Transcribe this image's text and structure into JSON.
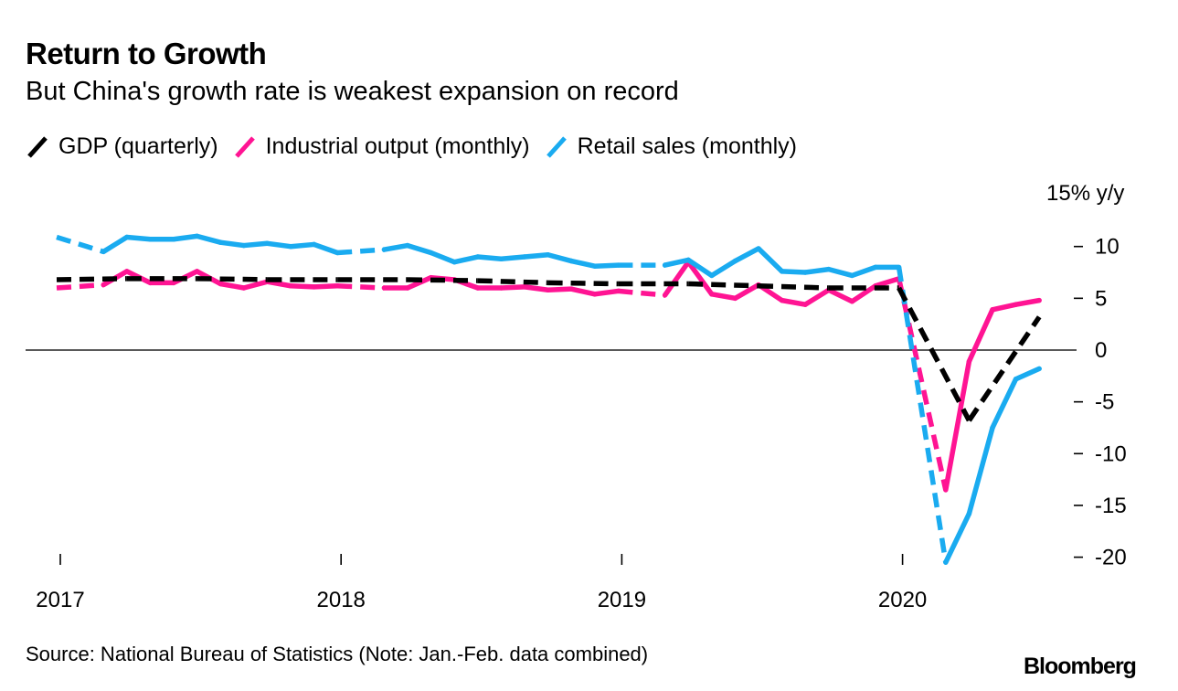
{
  "header": {
    "title": "Return to Growth",
    "subtitle": "But China's growth rate is weakest expansion on record"
  },
  "footer": {
    "source": "Source: National Bureau of Statistics (Note: Jan.-Feb. data combined)",
    "brand": "Bloomberg"
  },
  "colors": {
    "gdp": "#000000",
    "industrial": "#ff1493",
    "retail": "#1aabf0",
    "zero_line": "#222222"
  },
  "chart_data": {
    "type": "line",
    "title": "Return to Growth",
    "subtitle": "But China's growth rate is weakest expansion on record",
    "ylabel": "% y/y",
    "y_unit_label": "15% y/y",
    "ylim": [
      -20,
      15
    ],
    "yticks": [
      10,
      5,
      0,
      -5,
      -10,
      -15,
      -20
    ],
    "ytick_labels": [
      "10",
      "5",
      "0",
      "-5",
      "-10",
      "-15",
      "-20"
    ],
    "xticks": [
      "2017",
      "2018",
      "2019",
      "2020"
    ],
    "x_range": [
      "2016-12",
      "2020-06"
    ],
    "legend_position": "top-left",
    "grid": false,
    "zero_line": true,
    "legend": [
      {
        "name": "GDP (quarterly)",
        "key": "gdp"
      },
      {
        "name": "Industrial output (monthly)",
        "key": "industrial"
      },
      {
        "name": "Retail sales (monthly)",
        "key": "retail"
      }
    ],
    "series": [
      {
        "name": "GDP (quarterly)",
        "key": "gdp",
        "style": "dashed",
        "x": [
          "2016-12",
          "2017-03",
          "2017-06",
          "2017-09",
          "2017-12",
          "2018-03",
          "2018-06",
          "2018-09",
          "2018-12",
          "2019-03",
          "2019-06",
          "2019-09",
          "2019-12",
          "2020-03",
          "2020-06"
        ],
        "values": [
          6.8,
          6.9,
          6.9,
          6.8,
          6.8,
          6.8,
          6.7,
          6.5,
          6.4,
          6.4,
          6.2,
          6.0,
          6.0,
          -6.8,
          3.2
        ]
      },
      {
        "name": "Industrial output (monthly)",
        "key": "industrial",
        "style": "solid-with-dashed-jan-feb",
        "x": [
          "2016-12",
          "2017-02",
          "2017-03",
          "2017-04",
          "2017-05",
          "2017-06",
          "2017-07",
          "2017-08",
          "2017-09",
          "2017-10",
          "2017-11",
          "2017-12",
          "2018-02",
          "2018-03",
          "2018-04",
          "2018-05",
          "2018-06",
          "2018-07",
          "2018-08",
          "2018-09",
          "2018-10",
          "2018-11",
          "2018-12",
          "2019-02",
          "2019-03",
          "2019-04",
          "2019-05",
          "2019-06",
          "2019-07",
          "2019-08",
          "2019-09",
          "2019-10",
          "2019-11",
          "2019-12",
          "2020-02",
          "2020-03",
          "2020-04",
          "2020-05",
          "2020-06"
        ],
        "values": [
          6.0,
          6.3,
          7.6,
          6.5,
          6.5,
          7.6,
          6.4,
          6.0,
          6.6,
          6.2,
          6.1,
          6.2,
          6.0,
          6.0,
          7.0,
          6.8,
          6.0,
          6.0,
          6.1,
          5.8,
          5.9,
          5.4,
          5.7,
          5.3,
          8.5,
          5.4,
          5.0,
          6.3,
          4.8,
          4.4,
          5.8,
          4.7,
          6.2,
          6.9,
          -13.5,
          -1.1,
          3.9,
          4.4,
          4.8
        ]
      },
      {
        "name": "Retail sales (monthly)",
        "key": "retail",
        "style": "solid-with-dashed-jan-feb",
        "x": [
          "2016-12",
          "2017-02",
          "2017-03",
          "2017-04",
          "2017-05",
          "2017-06",
          "2017-07",
          "2017-08",
          "2017-09",
          "2017-10",
          "2017-11",
          "2017-12",
          "2018-02",
          "2018-03",
          "2018-04",
          "2018-05",
          "2018-06",
          "2018-07",
          "2018-08",
          "2018-09",
          "2018-10",
          "2018-11",
          "2018-12",
          "2019-02",
          "2019-03",
          "2019-04",
          "2019-05",
          "2019-06",
          "2019-07",
          "2019-08",
          "2019-09",
          "2019-10",
          "2019-11",
          "2019-12",
          "2020-02",
          "2020-03",
          "2020-04",
          "2020-05",
          "2020-06"
        ],
        "values": [
          10.9,
          9.5,
          10.9,
          10.7,
          10.7,
          11.0,
          10.4,
          10.1,
          10.3,
          10.0,
          10.2,
          9.4,
          9.7,
          10.1,
          9.4,
          8.5,
          9.0,
          8.8,
          9.0,
          9.2,
          8.6,
          8.1,
          8.2,
          8.2,
          8.7,
          7.2,
          8.6,
          9.8,
          7.6,
          7.5,
          7.8,
          7.2,
          8.0,
          8.0,
          -20.5,
          -15.8,
          -7.5,
          -2.8,
          -1.8
        ]
      }
    ]
  }
}
